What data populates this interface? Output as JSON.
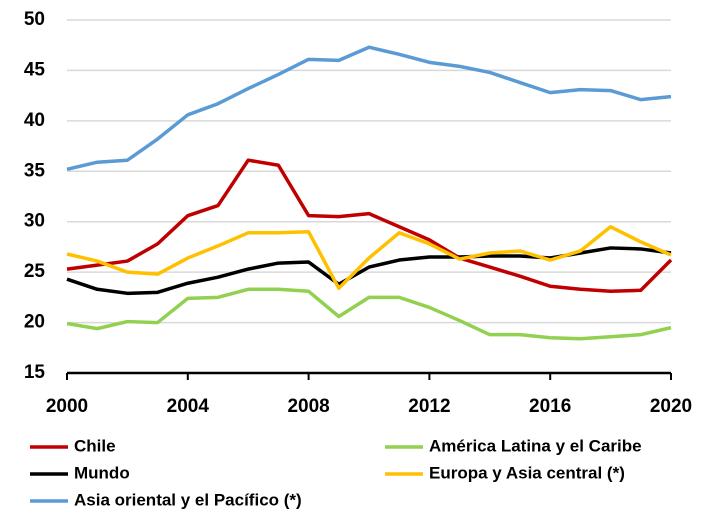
{
  "chart_data": {
    "type": "line",
    "x": [
      2000,
      2001,
      2002,
      2003,
      2004,
      2005,
      2006,
      2007,
      2008,
      2009,
      2010,
      2011,
      2012,
      2013,
      2014,
      2015,
      2016,
      2017,
      2018,
      2019,
      2020
    ],
    "series": [
      {
        "name": "Chile",
        "color": "#c00000",
        "values": [
          25.3,
          25.7,
          26.1,
          27.8,
          30.6,
          31.6,
          36.1,
          35.6,
          30.6,
          30.5,
          30.8,
          29.5,
          28.2,
          26.4,
          25.5,
          24.6,
          23.6,
          23.3,
          23.1,
          23.2,
          26.2
        ]
      },
      {
        "name": "América Latina y el Caribe",
        "color": "#92d050",
        "values": [
          19.9,
          19.4,
          20.1,
          20.0,
          22.4,
          22.5,
          23.3,
          23.3,
          23.1,
          20.6,
          22.5,
          22.5,
          21.5,
          20.2,
          18.8,
          18.8,
          18.5,
          18.4,
          18.6,
          18.8,
          19.5
        ]
      },
      {
        "name": "Mundo",
        "color": "#000000",
        "values": [
          24.3,
          23.3,
          22.9,
          23.0,
          23.9,
          24.5,
          25.3,
          25.9,
          26.0,
          23.8,
          25.5,
          26.2,
          26.5,
          26.5,
          26.6,
          26.6,
          26.4,
          26.9,
          27.4,
          27.3,
          26.9
        ]
      },
      {
        "name": "Europa y Asia central (*)",
        "color": "#ffc000",
        "values": [
          26.8,
          26.1,
          25.0,
          24.8,
          26.4,
          27.6,
          28.9,
          28.9,
          29.0,
          23.4,
          26.4,
          28.9,
          27.8,
          26.3,
          26.9,
          27.1,
          26.2,
          27.1,
          29.5,
          28.0,
          26.7
        ]
      },
      {
        "name": "Asia oriental y el Pacífico (*)",
        "color": "#5b9bd5",
        "values": [
          35.2,
          35.9,
          36.1,
          38.2,
          40.6,
          41.7,
          43.2,
          44.6,
          46.1,
          46.0,
          47.3,
          46.6,
          45.8,
          45.4,
          44.8,
          43.8,
          42.8,
          43.1,
          43.0,
          42.1,
          42.4
        ]
      }
    ],
    "xlim": [
      2000,
      2020
    ],
    "xticks": [
      2000,
      2004,
      2008,
      2012,
      2016,
      2020
    ],
    "ylim": [
      15,
      50
    ],
    "yticks": [
      15,
      20,
      25,
      30,
      35,
      40,
      45,
      50
    ],
    "grid": true,
    "legend": "bottom"
  }
}
